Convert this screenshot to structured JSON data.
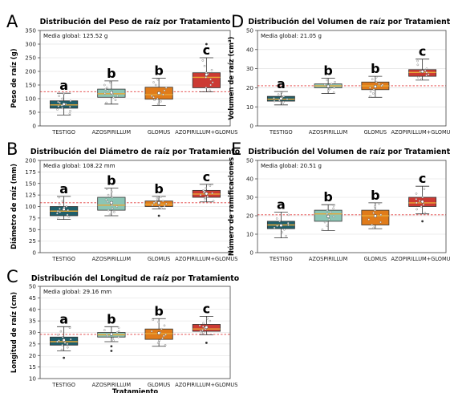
{
  "colors": {
    "TESTIGO": "#1f5f6b",
    "AZOSPIRILLUM": "#8cc5b4",
    "GLOMUS": "#e07b1a",
    "AZOPIRILLUM+GLOMUS": "#cc3a33",
    "mean_line": "#e23b3b",
    "median": "#e8a838"
  },
  "chart_data": [
    {
      "panel_letter": "A",
      "type": "box",
      "title": "Distribución del Peso de  raíz por Tratamiento",
      "ylabel": "Peso de raíz (g)",
      "xlabel": "",
      "global_text": "Media global: 125.52 g",
      "global_mean": 125.52,
      "ylim": [
        0,
        350
      ],
      "yticks": [
        "0",
        "50",
        "100",
        "150",
        "200",
        "250",
        "300",
        "350"
      ],
      "categories": [
        "TESTIGO",
        "AZOSPIRILLUM",
        "GLOMUS",
        "AZOPIRILLUM+GLOMUS"
      ],
      "letters": [
        "a",
        "b",
        "b",
        "c"
      ],
      "boxes": [
        {
          "whislo": 40,
          "q1": 65,
          "med": 77,
          "q3": 92,
          "whishi": 120,
          "fliers": [],
          "points": [
            45,
            55,
            60,
            65,
            70,
            72,
            75,
            78,
            80,
            85,
            88,
            92,
            100,
            110,
            118
          ]
        },
        {
          "whislo": 80,
          "q1": 105,
          "med": 118,
          "q3": 135,
          "whishi": 165,
          "fliers": [],
          "points": [
            85,
            95,
            105,
            110,
            115,
            118,
            120,
            125,
            130,
            135,
            140,
            150,
            160
          ]
        },
        {
          "whislo": 75,
          "q1": 98,
          "med": 115,
          "q3": 142,
          "whishi": 175,
          "fliers": [],
          "points": [
            80,
            90,
            95,
            100,
            105,
            110,
            115,
            120,
            130,
            140,
            150,
            160,
            170
          ]
        },
        {
          "whislo": 125,
          "q1": 140,
          "med": 178,
          "q3": 195,
          "whishi": 250,
          "fliers": [
            300
          ],
          "points": [
            130,
            140,
            150,
            160,
            170,
            178,
            185,
            190,
            195,
            205,
            220,
            240,
            285
          ]
        }
      ]
    },
    {
      "panel_letter": "B",
      "type": "box",
      "title": "Distribución del Diámetro de  raíz por Tratamiento",
      "ylabel": "Diámetro de raíz (mm)",
      "xlabel": "",
      "global_text": "Media global: 108.22 mm",
      "global_mean": 108.22,
      "ylim": [
        0,
        200
      ],
      "yticks": [
        "0",
        "25",
        "50",
        "75",
        "100",
        "125",
        "150",
        "175",
        "200"
      ],
      "categories": [
        "TESTIGO",
        "AZOSPIRILLUM",
        "GLOMUS",
        "AZOPIRILLUM+GLOMUS"
      ],
      "letters": [
        "a",
        "b",
        "b",
        "c"
      ],
      "boxes": [
        {
          "whislo": 72,
          "q1": 80,
          "med": 90,
          "q3": 100,
          "whishi": 122,
          "fliers": [],
          "points": [
            74,
            78,
            82,
            85,
            88,
            90,
            92,
            95,
            98,
            100,
            105,
            112,
            120
          ]
        },
        {
          "whislo": 80,
          "q1": 92,
          "med": 103,
          "q3": 120,
          "whishi": 140,
          "fliers": [],
          "points": [
            82,
            88,
            92,
            96,
            100,
            103,
            106,
            110,
            115,
            120,
            125,
            132,
            138
          ]
        },
        {
          "whislo": 95,
          "q1": 100,
          "med": 105,
          "q3": 112,
          "whishi": 122,
          "fliers": [
            80
          ],
          "points": [
            96,
            99,
            101,
            103,
            105,
            106,
            108,
            110,
            112,
            115,
            118,
            121
          ]
        },
        {
          "whislo": 110,
          "q1": 120,
          "med": 127,
          "q3": 135,
          "whishi": 148,
          "fliers": [],
          "points": [
            112,
            116,
            120,
            122,
            125,
            127,
            129,
            131,
            133,
            135,
            140,
            145
          ]
        }
      ]
    },
    {
      "panel_letter": "C",
      "type": "box",
      "title": "Distribución del Longitud de raíz por Tratamiento",
      "ylabel": "Longitud de raíz (cm)",
      "xlabel": "Tratamiento",
      "global_text": "Media global: 29.16 mm",
      "global_mean": 29.16,
      "ylim": [
        10,
        50
      ],
      "yticks": [
        "10",
        "15",
        "20",
        "25",
        "30",
        "35",
        "40",
        "45",
        "50"
      ],
      "categories": [
        "TESTIGO",
        "AZOSPIRILLUM",
        "GLOMUS",
        "AZOPIRILLUM+GLOMUS"
      ],
      "letters": [
        "a",
        "b",
        "b",
        "c"
      ],
      "boxes": [
        {
          "whislo": 22,
          "q1": 24.5,
          "med": 26,
          "q3": 28,
          "whishi": 32.5,
          "fliers": [
            19
          ],
          "points": [
            22.5,
            23.5,
            24.5,
            25,
            25.5,
            26,
            26.5,
            27,
            28,
            29,
            30.5,
            32
          ]
        },
        {
          "whislo": 26,
          "q1": 28,
          "med": 29,
          "q3": 30,
          "whishi": 32.5,
          "fliers": [
            22,
            24
          ],
          "points": [
            26.5,
            27.5,
            28,
            28.5,
            29,
            29.5,
            30,
            30.5,
            31,
            32
          ]
        },
        {
          "whislo": 24,
          "q1": 27,
          "med": 29.5,
          "q3": 31.5,
          "whishi": 36,
          "fliers": [],
          "points": [
            24.5,
            25.5,
            26.5,
            27.5,
            28.5,
            29,
            30,
            30.5,
            31.5,
            33,
            34.5,
            35.5
          ]
        },
        {
          "whislo": 29,
          "q1": 30.5,
          "med": 31.5,
          "q3": 33.5,
          "whishi": 37,
          "fliers": [
            25.5
          ],
          "points": [
            29.5,
            30,
            30.5,
            31,
            31.5,
            32,
            32.5,
            33,
            34,
            35,
            36
          ]
        }
      ]
    },
    {
      "panel_letter": "D",
      "type": "box",
      "title": "Distribución del Volumen de raíz por Tratamiento",
      "ylabel": "Volumen de raíz (cm³)",
      "xlabel": "",
      "global_text": "Media global: 21.05 g",
      "global_mean": 21.05,
      "ylim": [
        0,
        50
      ],
      "yticks": [
        "0",
        "10",
        "20",
        "30",
        "40",
        "50"
      ],
      "categories": [
        "TESTIGO",
        "AZOSPIRILLUM",
        "GLOMUS",
        "AZOPIRILLUM+GLOMUS"
      ],
      "letters": [
        "a",
        "b",
        "b",
        "c"
      ],
      "boxes": [
        {
          "whislo": 11,
          "q1": 13,
          "med": 14,
          "q3": 15.5,
          "whishi": 18,
          "fliers": [],
          "points": [
            11.5,
            12.5,
            13,
            13.5,
            14,
            14.5,
            15,
            15.5,
            16.5,
            17.5
          ]
        },
        {
          "whislo": 17,
          "q1": 20,
          "med": 21,
          "q3": 22,
          "whishi": 25,
          "fliers": [],
          "points": [
            17.5,
            18.5,
            19.5,
            20,
            20.5,
            21,
            21.5,
            22,
            23,
            24
          ]
        },
        {
          "whislo": 15,
          "q1": 19,
          "med": 21,
          "q3": 23,
          "whishi": 26,
          "fliers": [],
          "points": [
            15.5,
            17,
            18,
            19,
            20,
            21,
            21.5,
            22,
            23,
            24.5,
            25.5
          ]
        },
        {
          "whislo": 24,
          "q1": 26,
          "med": 28,
          "q3": 29.5,
          "whishi": 35,
          "fliers": [],
          "points": [
            24.5,
            25.5,
            26.5,
            27,
            28,
            28.5,
            29,
            30,
            32,
            34
          ]
        }
      ]
    },
    {
      "panel_letter": "E",
      "type": "box",
      "title": "Distribución del Volumen de raíz por Tratamiento",
      "ylabel": "Número de ramificaciones",
      "xlabel": "",
      "global_text": "Media global: 20.51 g",
      "global_mean": 20.51,
      "ylim": [
        0,
        50
      ],
      "yticks": [
        "0",
        "10",
        "20",
        "30",
        "40",
        "50"
      ],
      "categories": [
        "TESTIGO",
        "AZOSPIRILLUM",
        "GLOMUS",
        "AZOPIRILLUM+GLOMUS"
      ],
      "letters": [
        "a",
        "b",
        "b",
        "c"
      ],
      "boxes": [
        {
          "whislo": 8,
          "q1": 13,
          "med": 15,
          "q3": 17,
          "whishi": 22,
          "fliers": [],
          "points": [
            9,
            11,
            12.5,
            13.5,
            14.5,
            15,
            16,
            17,
            18.5,
            20.5
          ]
        },
        {
          "whislo": 12,
          "q1": 17,
          "med": 21,
          "q3": 23,
          "whishi": 26,
          "fliers": [],
          "points": [
            12.5,
            14.5,
            16.5,
            18,
            19.5,
            21,
            22,
            23,
            24,
            25.5
          ]
        },
        {
          "whislo": 13,
          "q1": 15,
          "med": 20,
          "q3": 23,
          "whishi": 27,
          "fliers": [],
          "points": [
            13.5,
            15,
            16.5,
            18,
            19.5,
            20.5,
            21.5,
            23,
            25,
            26.5
          ]
        },
        {
          "whislo": 21,
          "q1": 25,
          "med": 27,
          "q3": 30,
          "whishi": 36,
          "fliers": [
            17
          ],
          "points": [
            21.5,
            23.5,
            25,
            26,
            27,
            28,
            29,
            30,
            32,
            34.5
          ]
        }
      ]
    }
  ]
}
